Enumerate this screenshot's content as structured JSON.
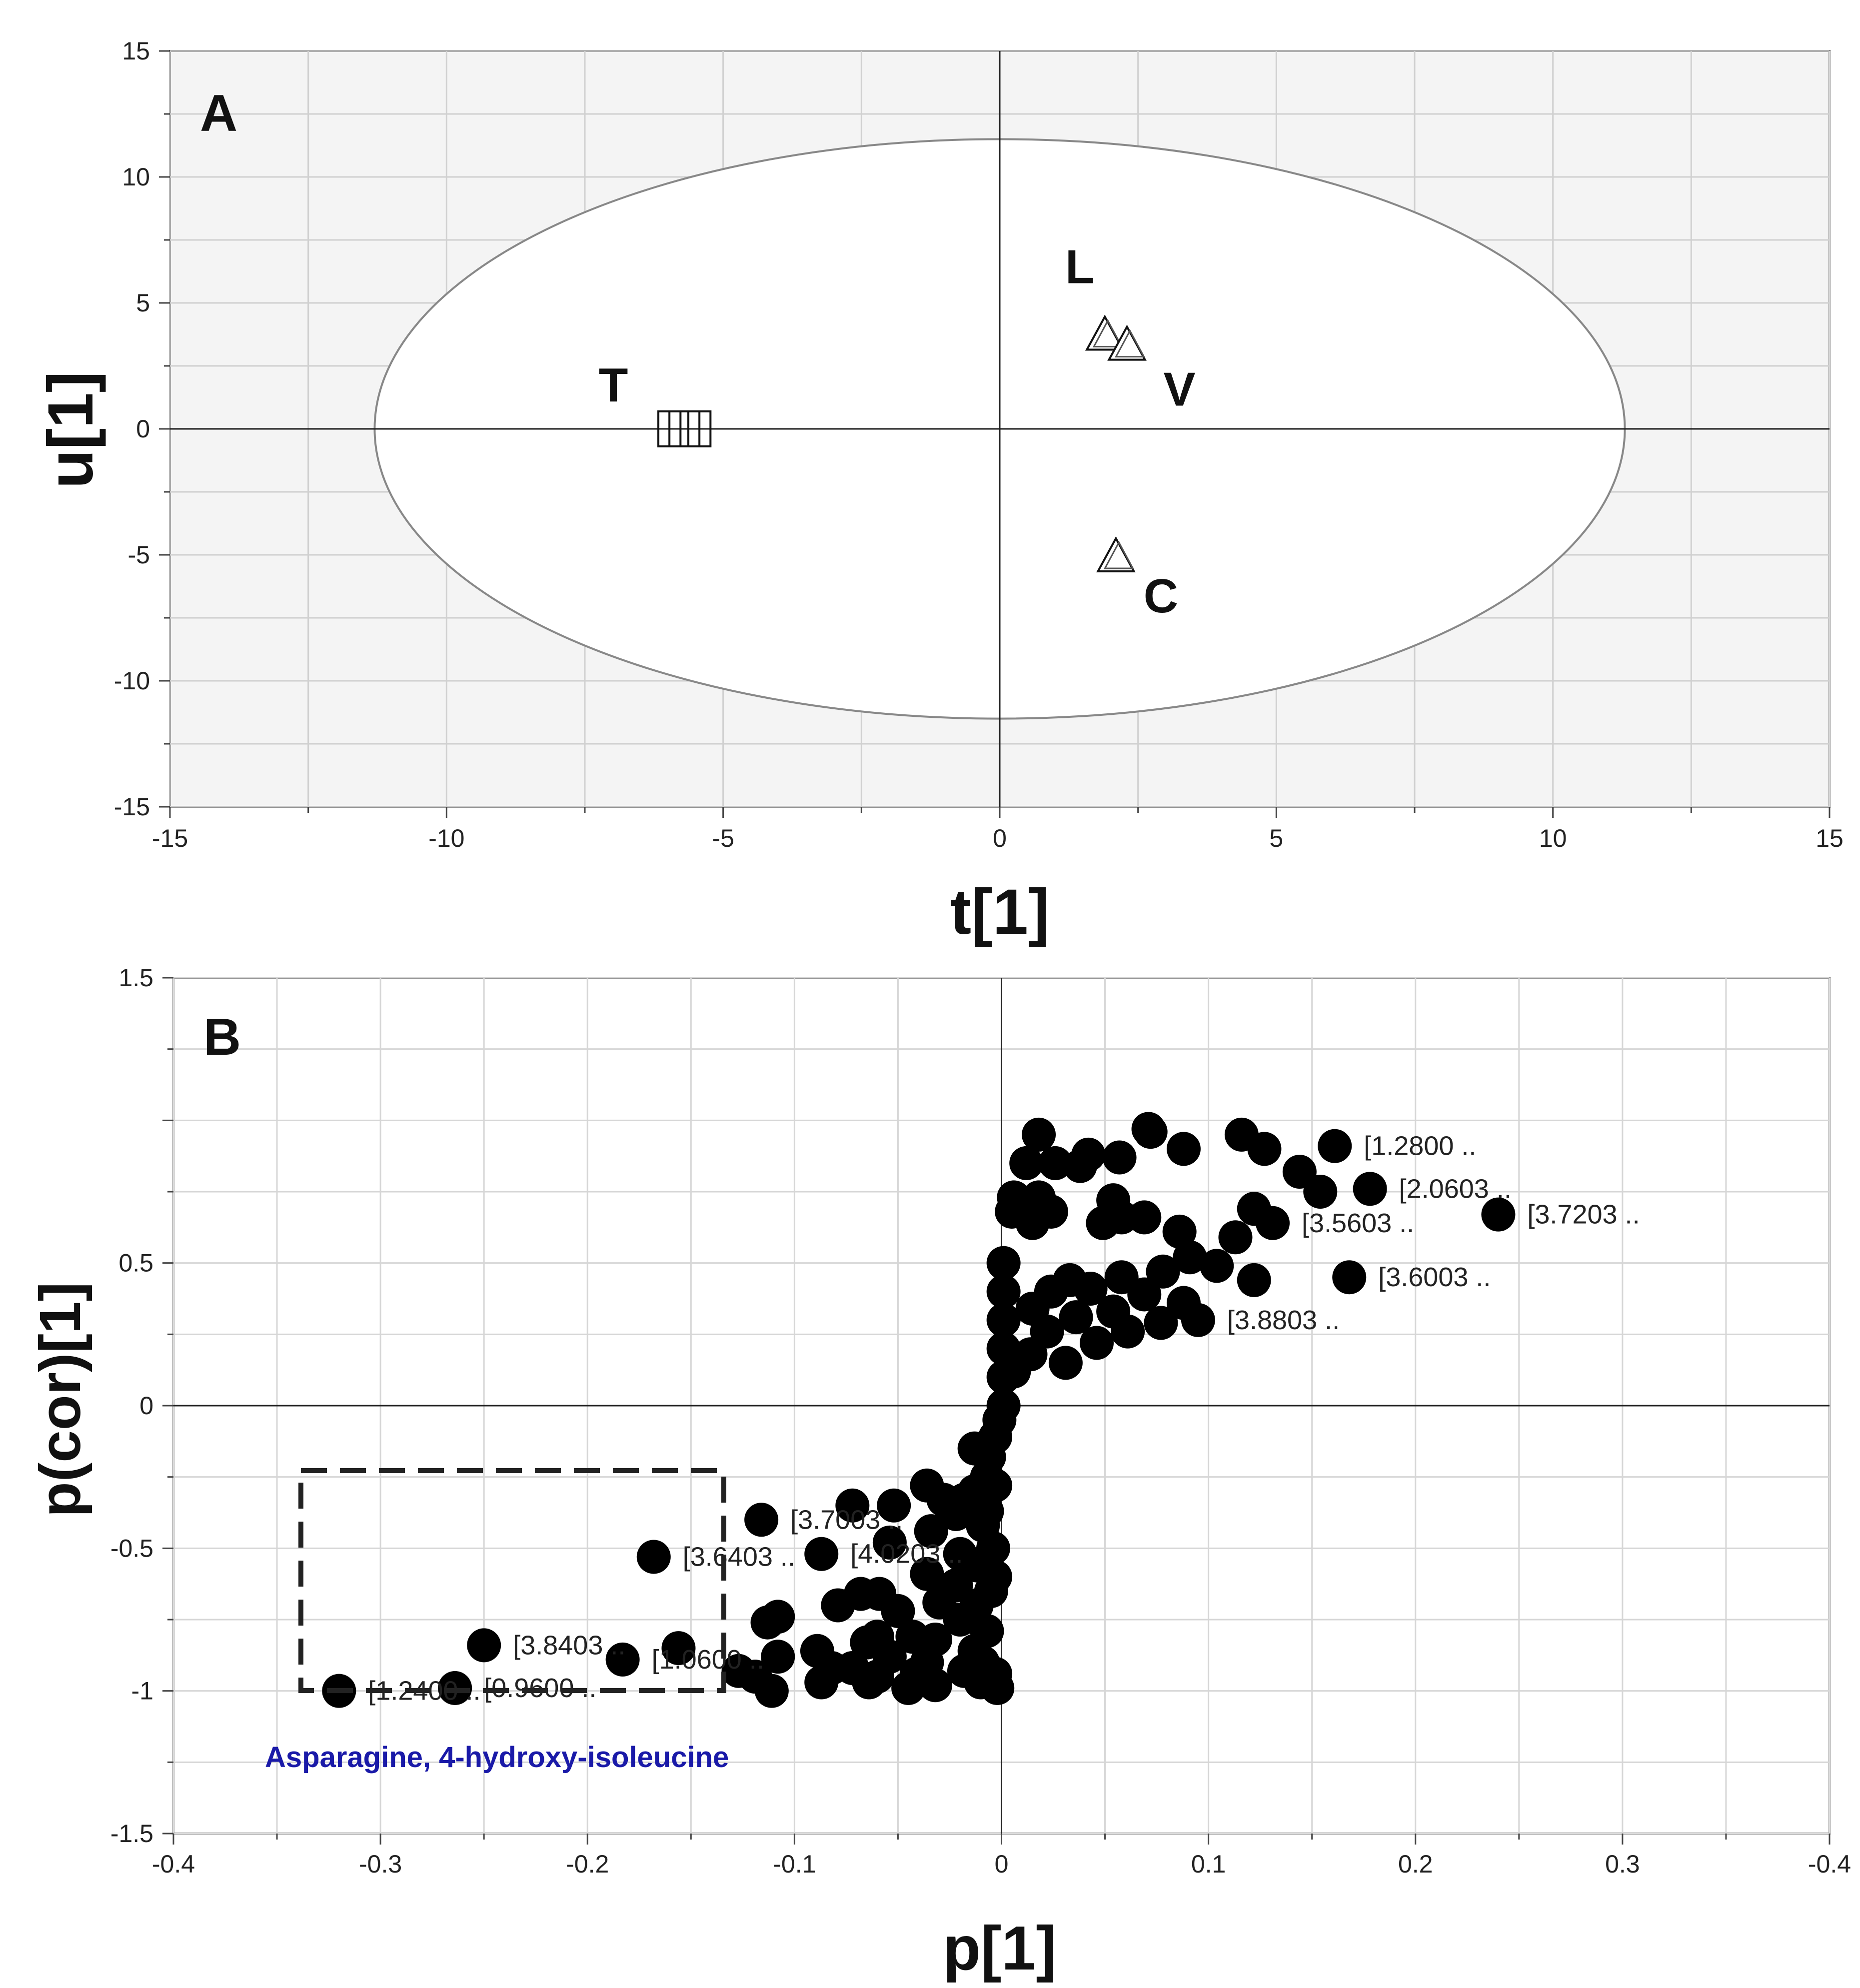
{
  "chart_data": [
    {
      "panel": "A",
      "type": "scatter",
      "title": "",
      "xlabel": "t[1]",
      "ylabel": "u[1]",
      "xlim": [
        -15,
        15
      ],
      "ylim": [
        -15,
        15
      ],
      "xticks": [
        "-15",
        "-10",
        "-5",
        "0",
        "5",
        "10",
        "15"
      ],
      "yticks": [
        "15",
        "10",
        "5",
        "0",
        "-5",
        "-10",
        "-15"
      ],
      "grid": true,
      "ellipse": {
        "rx": 11.3,
        "ry": 11.5
      },
      "groups": [
        {
          "label": "T",
          "marker": "square",
          "points": [
            [
              -5.9,
              0.0
            ],
            [
              -5.7,
              0.0
            ],
            [
              -5.5,
              0.0
            ]
          ]
        },
        {
          "label": "L",
          "marker": "triangle",
          "points": [
            [
              1.9,
              3.7
            ]
          ]
        },
        {
          "label": "V",
          "marker": "triangle",
          "points": [
            [
              2.3,
              3.3
            ]
          ]
        },
        {
          "label": "C",
          "marker": "triangle",
          "points": [
            [
              2.1,
              -5.1
            ]
          ]
        }
      ]
    },
    {
      "panel": "B",
      "type": "scatter",
      "title": "",
      "xlabel": "p[1]",
      "ylabel": "p(cor)[1]",
      "xlim": [
        -0.4,
        0.4
      ],
      "ylim": [
        -1.5,
        1.5
      ],
      "xticks": [
        "-0.4",
        "-0.3",
        "-0.2",
        "-0.1",
        "0",
        "0.1",
        "0.2",
        "0.3",
        "-0.4"
      ],
      "yticks": [
        "1.5",
        "0.5",
        "0",
        "-0.5",
        "-1",
        "-1.5"
      ],
      "grid": true,
      "highlight_annotation": "Asparagine, 4-hydroxy-isoleucine",
      "labeled_points": [
        {
          "x": -0.32,
          "y": -1.0,
          "label": "[1.2400 .."
        },
        {
          "x": -0.264,
          "y": -0.99,
          "label": "[0.9600 .."
        },
        {
          "x": -0.25,
          "y": -0.84,
          "label": "[3.8403 .."
        },
        {
          "x": -0.168,
          "y": -0.53,
          "label": "[3.6403 .."
        },
        {
          "x": -0.183,
          "y": -0.89,
          "label": "[1.0600 .."
        },
        {
          "x": -0.116,
          "y": -0.4,
          "label": "[3.7003 .."
        },
        {
          "x": -0.087,
          "y": -0.52,
          "label": "[4.0203 .."
        },
        {
          "x": 0.24,
          "y": 0.67,
          "label": "[3.7203 .."
        },
        {
          "x": 0.161,
          "y": 0.91,
          "label": "[1.2800 .."
        },
        {
          "x": 0.178,
          "y": 0.76,
          "label": "[2.0603 .."
        },
        {
          "x": 0.168,
          "y": 0.45,
          "label": "[3.6003 .."
        },
        {
          "x": 0.131,
          "y": 0.64,
          "label": "[3.5603 .."
        },
        {
          "x": 0.095,
          "y": 0.3,
          "label": "[3.8803 .."
        }
      ],
      "points": [
        [
          0.018,
          0.95
        ],
        [
          0.071,
          0.97
        ],
        [
          0.072,
          0.96
        ],
        [
          0.116,
          0.95
        ],
        [
          0.127,
          0.9
        ],
        [
          0.088,
          0.9
        ],
        [
          0.057,
          0.87
        ],
        [
          0.042,
          0.88
        ],
        [
          0.012,
          0.85
        ],
        [
          0.026,
          0.85
        ],
        [
          0.038,
          0.84
        ],
        [
          0.144,
          0.82
        ],
        [
          0.154,
          0.75
        ],
        [
          0.006,
          0.73
        ],
        [
          0.054,
          0.72
        ],
        [
          0.018,
          0.73
        ],
        [
          0.122,
          0.69
        ],
        [
          0.005,
          0.68
        ],
        [
          0.024,
          0.68
        ],
        [
          0.058,
          0.66
        ],
        [
          0.069,
          0.66
        ],
        [
          0.015,
          0.64
        ],
        [
          0.049,
          0.64
        ],
        [
          0.086,
          0.61
        ],
        [
          0.113,
          0.59
        ],
        [
          0.091,
          0.52
        ],
        [
          0.104,
          0.49
        ],
        [
          0.078,
          0.47
        ],
        [
          0.058,
          0.45
        ],
        [
          0.122,
          0.44
        ],
        [
          0.033,
          0.44
        ],
        [
          0.043,
          0.41
        ],
        [
          0.024,
          0.4
        ],
        [
          0.069,
          0.39
        ],
        [
          0.088,
          0.36
        ],
        [
          0.015,
          0.34
        ],
        [
          0.054,
          0.33
        ],
        [
          0.036,
          0.31
        ],
        [
          0.077,
          0.29
        ],
        [
          0.022,
          0.26
        ],
        [
          0.061,
          0.26
        ],
        [
          0.046,
          0.22
        ],
        [
          0.014,
          0.18
        ],
        [
          0.031,
          0.15
        ],
        [
          0.006,
          0.12
        ],
        [
          0.001,
          0.5
        ],
        [
          0.001,
          0.4
        ],
        [
          0.001,
          0.3
        ],
        [
          0.001,
          0.2
        ],
        [
          0.001,
          0.1
        ],
        [
          0.001,
          0.0
        ],
        [
          -0.001,
          -0.05
        ],
        [
          -0.003,
          -0.11
        ],
        [
          -0.006,
          -0.18
        ],
        [
          -0.013,
          -0.15
        ],
        [
          -0.007,
          -0.25
        ],
        [
          -0.003,
          -0.28
        ],
        [
          -0.013,
          -0.3
        ],
        [
          -0.018,
          -0.33
        ],
        [
          -0.036,
          -0.28
        ],
        [
          -0.028,
          -0.33
        ],
        [
          -0.022,
          -0.38
        ],
        [
          -0.007,
          -0.37
        ],
        [
          -0.052,
          -0.35
        ],
        [
          -0.072,
          -0.35
        ],
        [
          -0.009,
          -0.42
        ],
        [
          -0.034,
          -0.44
        ],
        [
          -0.054,
          -0.48
        ],
        [
          -0.02,
          -0.52
        ],
        [
          -0.004,
          -0.5
        ],
        [
          -0.012,
          -0.56
        ],
        [
          -0.003,
          -0.6
        ],
        [
          -0.036,
          -0.59
        ],
        [
          -0.022,
          -0.63
        ],
        [
          -0.005,
          -0.65
        ],
        [
          -0.068,
          -0.66
        ],
        [
          -0.059,
          -0.66
        ],
        [
          -0.079,
          -0.7
        ],
        [
          -0.05,
          -0.72
        ],
        [
          -0.03,
          -0.69
        ],
        [
          -0.012,
          -0.7
        ],
        [
          -0.108,
          -0.74
        ],
        [
          -0.113,
          -0.76
        ],
        [
          -0.02,
          -0.75
        ],
        [
          -0.007,
          -0.79
        ],
        [
          -0.06,
          -0.81
        ],
        [
          -0.043,
          -0.81
        ],
        [
          -0.032,
          -0.82
        ],
        [
          -0.065,
          -0.83
        ],
        [
          -0.156,
          -0.85
        ],
        [
          -0.089,
          -0.86
        ],
        [
          -0.108,
          -0.88
        ],
        [
          -0.013,
          -0.86
        ],
        [
          -0.054,
          -0.88
        ],
        [
          -0.036,
          -0.9
        ],
        [
          -0.009,
          -0.9
        ],
        [
          -0.127,
          -0.93
        ],
        [
          -0.082,
          -0.92
        ],
        [
          -0.072,
          -0.92
        ],
        [
          -0.119,
          -0.95
        ],
        [
          -0.06,
          -0.95
        ],
        [
          -0.041,
          -0.94
        ],
        [
          -0.018,
          -0.93
        ],
        [
          -0.003,
          -0.94
        ],
        [
          -0.111,
          -1.0
        ],
        [
          -0.087,
          -0.97
        ],
        [
          -0.064,
          -0.97
        ],
        [
          -0.045,
          -0.99
        ],
        [
          -0.032,
          -0.98
        ],
        [
          -0.01,
          -0.97
        ],
        [
          -0.002,
          -0.99
        ]
      ]
    }
  ],
  "colors": {
    "panel_a_background": "#f4f4f4",
    "grid": "#cfcfcf",
    "marker": "#000000",
    "annotation": "#1a1aa8"
  }
}
